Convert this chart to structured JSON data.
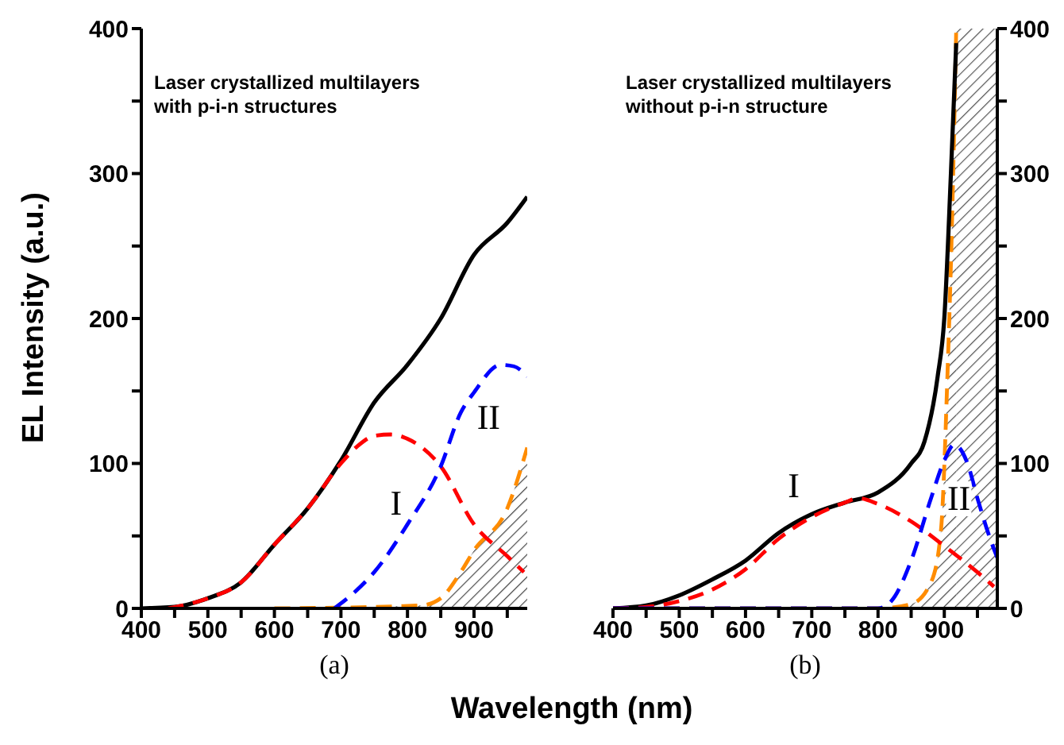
{
  "chart_data": [
    {
      "type": "line",
      "xlabel": "Wavelength (nm)",
      "ylabel": "EL Intensity (a.u.)",
      "xlim": [
        400,
        980
      ],
      "xticks": [
        400,
        {
          "value": 450,
          "label": null
        },
        500,
        {
          "value": 550,
          "label": null
        },
        600,
        {
          "value": 650,
          "label": null
        },
        700,
        {
          "value": 750,
          "label": null
        },
        800,
        {
          "value": 850,
          "label": null
        },
        900,
        {
          "value": 950,
          "label": null
        }
      ],
      "ylim": [
        0,
        400
      ],
      "yticks": [
        0,
        {
          "value": 50,
          "label": null
        },
        100,
        {
          "value": 150,
          "label": null
        },
        200,
        {
          "value": 250,
          "label": null
        },
        300,
        {
          "value": 350,
          "label": null
        },
        400
      ],
      "annotations": [
        "Laser crystallized multilayers with p-i-n structures",
        "(a)",
        "I",
        "II"
      ],
      "series": [
        {
          "color": "#000000",
          "line_style": "solid",
          "x": [
            400,
            450,
            500,
            550,
            600,
            650,
            700,
            750,
            800,
            850,
            900,
            950,
            980
          ],
          "values": [
            0,
            1,
            7,
            18,
            44,
            69,
            102,
            142,
            168,
            200,
            244,
            266,
            284
          ]
        },
        {
          "color": "#ff0000",
          "line_style": "dashed",
          "x": [
            440,
            500,
            550,
            600,
            650,
            700,
            725,
            750,
            775,
            800,
            850,
            900,
            950,
            975
          ],
          "values": [
            0,
            7,
            18,
            44,
            69,
            100,
            112,
            119,
            120,
            117,
            98,
            58,
            36,
            25
          ]
        },
        {
          "color": "#0000ff",
          "line_style": "dashed",
          "x": [
            690,
            720,
            750,
            800,
            850,
            880,
            900,
            940,
            960,
            980
          ],
          "values": [
            0,
            11,
            25,
            58,
            98,
            135,
            149,
            168,
            167,
            160
          ]
        },
        {
          "type": "area",
          "color": "#ff8c00",
          "line_style": "dashed",
          "x": [
            600,
            820,
            850,
            880,
            900,
            950,
            980
          ],
          "values": [
            0,
            2,
            7,
            25,
            40,
            69,
            111
          ]
        }
      ]
    },
    {
      "type": "line",
      "xlim": [
        400,
        980
      ],
      "xticks": [
        400,
        {
          "value": 450,
          "label": null
        },
        500,
        {
          "value": 550,
          "label": null
        },
        600,
        {
          "value": 650,
          "label": null
        },
        700,
        {
          "value": 750,
          "label": null
        },
        800,
        {
          "value": 850,
          "label": null
        },
        900,
        {
          "value": 950,
          "label": null
        }
      ],
      "y2lim": [
        0,
        400
      ],
      "y2ticks": [
        0,
        {
          "value": 50,
          "label": null
        },
        100,
        {
          "value": 150,
          "label": null
        },
        200,
        {
          "value": 250,
          "label": null
        },
        300,
        {
          "value": 350,
          "label": null
        },
        400
      ],
      "annotations": [
        "Laser crystallized multilayers without p-i-n structure",
        "(b)",
        "I",
        "II"
      ],
      "bands": [
        {
          "axis": "x",
          "from": 918,
          "to": 980,
          "color": "#555555"
        }
      ],
      "series": [
        {
          "axis": "y2",
          "color": "#000000",
          "line_style": "solid",
          "x": [
            400,
            450,
            500,
            550,
            600,
            650,
            700,
            750,
            800,
            850,
            870,
            890,
            900,
            910,
            918
          ],
          "values": [
            0,
            2,
            9,
            20,
            33,
            52,
            65,
            73,
            80,
            100,
            115,
            160,
            200,
            300,
            390
          ]
        },
        {
          "axis": "y2",
          "color": "#ff0000",
          "line_style": "dashed",
          "x": [
            400,
            450,
            500,
            550,
            600,
            650,
            700,
            750,
            770,
            800,
            850,
            900,
            950,
            975
          ],
          "values": [
            0,
            1,
            5,
            13,
            27,
            48,
            63,
            73,
            76,
            72,
            60,
            43,
            25,
            15
          ]
        },
        {
          "axis": "y2",
          "color": "#0000ff",
          "line_style": "dashed",
          "x": [
            400,
            800,
            820,
            850,
            880,
            900,
            915,
            935,
            950,
            970,
            980
          ],
          "values": [
            0,
            0,
            5,
            33,
            76,
            102,
            113,
            100,
            76,
            47,
            35
          ]
        },
        {
          "axis": "y2",
          "type": "area",
          "color": "#ff8c00",
          "line_style": "dashed",
          "x": [
            400,
            800,
            850,
            880,
            895,
            905,
            912,
            918
          ],
          "values": [
            0,
            0,
            3,
            18,
            54,
            164,
            273,
            400
          ]
        }
      ]
    }
  ]
}
